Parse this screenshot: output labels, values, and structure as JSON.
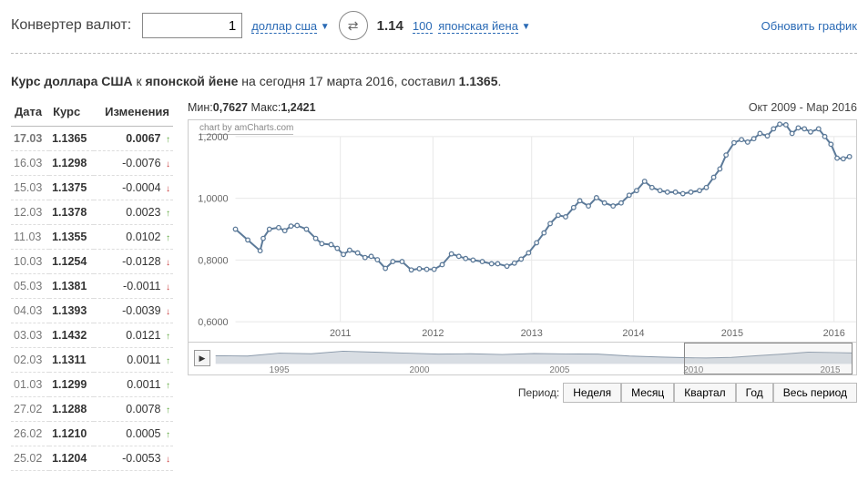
{
  "converter": {
    "title": "Конвертер валют:",
    "amount": "1",
    "from_label": "доллар сша",
    "result": "1.14",
    "to_prefix": "100",
    "to_label": "японская йена",
    "refresh": "Обновить график"
  },
  "headline": {
    "bold1": "Курс доллара США",
    "mid": " к ",
    "bold2": "японской йене",
    "rest": " на сегодня 17 марта 2016, составил ",
    "val": "1.1365",
    "dot": "."
  },
  "rates": {
    "headers": [
      "Дата",
      "Курс",
      "Изменения"
    ],
    "rows": [
      {
        "date": "17.03",
        "rate": "1.1365",
        "chg": "0.0067",
        "dir": "up"
      },
      {
        "date": "16.03",
        "rate": "1.1298",
        "chg": "-0.0076",
        "dir": "down"
      },
      {
        "date": "15.03",
        "rate": "1.1375",
        "chg": "-0.0004",
        "dir": "down"
      },
      {
        "date": "12.03",
        "rate": "1.1378",
        "chg": "0.0023",
        "dir": "up"
      },
      {
        "date": "11.03",
        "rate": "1.1355",
        "chg": "0.0102",
        "dir": "up"
      },
      {
        "date": "10.03",
        "rate": "1.1254",
        "chg": "-0.0128",
        "dir": "down"
      },
      {
        "date": "05.03",
        "rate": "1.1381",
        "chg": "-0.0011",
        "dir": "down"
      },
      {
        "date": "04.03",
        "rate": "1.1393",
        "chg": "-0.0039",
        "dir": "down"
      },
      {
        "date": "03.03",
        "rate": "1.1432",
        "chg": "0.0121",
        "dir": "up"
      },
      {
        "date": "02.03",
        "rate": "1.1311",
        "chg": "0.0011",
        "dir": "up"
      },
      {
        "date": "01.03",
        "rate": "1.1299",
        "chg": "0.0011",
        "dir": "up"
      },
      {
        "date": "27.02",
        "rate": "1.1288",
        "chg": "0.0078",
        "dir": "up"
      },
      {
        "date": "26.02",
        "rate": "1.1210",
        "chg": "0.0005",
        "dir": "up"
      },
      {
        "date": "25.02",
        "rate": "1.1204",
        "chg": "-0.0053",
        "dir": "down"
      }
    ]
  },
  "chart": {
    "min_label": "Мин:",
    "min_val": "0,7627",
    "max_label": "Макс:",
    "max_val": "1,2421",
    "range_label": "Окт 2009 - Мар 2016",
    "attribution": "chart by amCharts.com",
    "ylim": [
      0.6,
      1.2
    ],
    "yticks": [
      0.6,
      0.8,
      1.0,
      1.2
    ],
    "ytick_labels": [
      "0,6000",
      "0,8000",
      "1,0000",
      "1,2000"
    ],
    "xtick_positions": [
      0.17,
      0.32,
      0.48,
      0.645,
      0.805,
      0.97
    ],
    "xtick_labels": [
      "2011",
      "2012",
      "2013",
      "2014",
      "2015",
      "2016"
    ],
    "line_color": "#5c7a99",
    "grid_color": "#e8e8e8",
    "series": [
      {
        "x": 0.0,
        "y": 0.9
      },
      {
        "x": 0.02,
        "y": 0.865
      },
      {
        "x": 0.04,
        "y": 0.83
      },
      {
        "x": 0.045,
        "y": 0.87
      },
      {
        "x": 0.055,
        "y": 0.9
      },
      {
        "x": 0.07,
        "y": 0.905
      },
      {
        "x": 0.08,
        "y": 0.895
      },
      {
        "x": 0.09,
        "y": 0.91
      },
      {
        "x": 0.1,
        "y": 0.912
      },
      {
        "x": 0.115,
        "y": 0.9
      },
      {
        "x": 0.13,
        "y": 0.87
      },
      {
        "x": 0.14,
        "y": 0.853
      },
      {
        "x": 0.155,
        "y": 0.85
      },
      {
        "x": 0.165,
        "y": 0.838
      },
      {
        "x": 0.175,
        "y": 0.818
      },
      {
        "x": 0.185,
        "y": 0.832
      },
      {
        "x": 0.198,
        "y": 0.823
      },
      {
        "x": 0.21,
        "y": 0.808
      },
      {
        "x": 0.22,
        "y": 0.812
      },
      {
        "x": 0.23,
        "y": 0.801
      },
      {
        "x": 0.243,
        "y": 0.773
      },
      {
        "x": 0.255,
        "y": 0.795
      },
      {
        "x": 0.27,
        "y": 0.795
      },
      {
        "x": 0.285,
        "y": 0.768
      },
      {
        "x": 0.298,
        "y": 0.772
      },
      {
        "x": 0.31,
        "y": 0.77
      },
      {
        "x": 0.322,
        "y": 0.77
      },
      {
        "x": 0.335,
        "y": 0.785
      },
      {
        "x": 0.35,
        "y": 0.82
      },
      {
        "x": 0.362,
        "y": 0.812
      },
      {
        "x": 0.373,
        "y": 0.805
      },
      {
        "x": 0.385,
        "y": 0.8
      },
      {
        "x": 0.4,
        "y": 0.795
      },
      {
        "x": 0.415,
        "y": 0.788
      },
      {
        "x": 0.425,
        "y": 0.788
      },
      {
        "x": 0.44,
        "y": 0.78
      },
      {
        "x": 0.452,
        "y": 0.79
      },
      {
        "x": 0.463,
        "y": 0.803
      },
      {
        "x": 0.475,
        "y": 0.823
      },
      {
        "x": 0.488,
        "y": 0.856
      },
      {
        "x": 0.5,
        "y": 0.888
      },
      {
        "x": 0.51,
        "y": 0.918
      },
      {
        "x": 0.523,
        "y": 0.945
      },
      {
        "x": 0.535,
        "y": 0.94
      },
      {
        "x": 0.548,
        "y": 0.97
      },
      {
        "x": 0.558,
        "y": 0.992
      },
      {
        "x": 0.572,
        "y": 0.975
      },
      {
        "x": 0.585,
        "y": 1.002
      },
      {
        "x": 0.598,
        "y": 0.985
      },
      {
        "x": 0.612,
        "y": 0.975
      },
      {
        "x": 0.625,
        "y": 0.985
      },
      {
        "x": 0.638,
        "y": 1.01
      },
      {
        "x": 0.65,
        "y": 1.025
      },
      {
        "x": 0.663,
        "y": 1.055
      },
      {
        "x": 0.675,
        "y": 1.035
      },
      {
        "x": 0.688,
        "y": 1.025
      },
      {
        "x": 0.7,
        "y": 1.02
      },
      {
        "x": 0.713,
        "y": 1.02
      },
      {
        "x": 0.725,
        "y": 1.015
      },
      {
        "x": 0.738,
        "y": 1.02
      },
      {
        "x": 0.752,
        "y": 1.025
      },
      {
        "x": 0.763,
        "y": 1.035
      },
      {
        "x": 0.775,
        "y": 1.068
      },
      {
        "x": 0.785,
        "y": 1.095
      },
      {
        "x": 0.795,
        "y": 1.14
      },
      {
        "x": 0.808,
        "y": 1.18
      },
      {
        "x": 0.82,
        "y": 1.19
      },
      {
        "x": 0.83,
        "y": 1.182
      },
      {
        "x": 0.84,
        "y": 1.193
      },
      {
        "x": 0.85,
        "y": 1.21
      },
      {
        "x": 0.862,
        "y": 1.202
      },
      {
        "x": 0.872,
        "y": 1.225
      },
      {
        "x": 0.882,
        "y": 1.24
      },
      {
        "x": 0.892,
        "y": 1.238
      },
      {
        "x": 0.902,
        "y": 1.21
      },
      {
        "x": 0.912,
        "y": 1.228
      },
      {
        "x": 0.922,
        "y": 1.225
      },
      {
        "x": 0.932,
        "y": 1.215
      },
      {
        "x": 0.945,
        "y": 1.225
      },
      {
        "x": 0.955,
        "y": 1.2
      },
      {
        "x": 0.965,
        "y": 1.175
      },
      {
        "x": 0.975,
        "y": 1.13
      },
      {
        "x": 0.985,
        "y": 1.128
      },
      {
        "x": 0.995,
        "y": 1.135
      }
    ]
  },
  "scrubber": {
    "labels": [
      "1995",
      "2000",
      "2005",
      "2010",
      "2015"
    ],
    "positions": [
      0.1,
      0.32,
      0.54,
      0.75,
      0.965
    ],
    "sel_start": 0.735,
    "sel_end": 1.0,
    "series": [
      {
        "x": 0.0,
        "y": 0.42
      },
      {
        "x": 0.05,
        "y": 0.4
      },
      {
        "x": 0.1,
        "y": 0.55
      },
      {
        "x": 0.15,
        "y": 0.52
      },
      {
        "x": 0.2,
        "y": 0.65
      },
      {
        "x": 0.25,
        "y": 0.6
      },
      {
        "x": 0.3,
        "y": 0.55
      },
      {
        "x": 0.35,
        "y": 0.5
      },
      {
        "x": 0.4,
        "y": 0.52
      },
      {
        "x": 0.45,
        "y": 0.48
      },
      {
        "x": 0.5,
        "y": 0.53
      },
      {
        "x": 0.55,
        "y": 0.51
      },
      {
        "x": 0.6,
        "y": 0.5
      },
      {
        "x": 0.65,
        "y": 0.4
      },
      {
        "x": 0.7,
        "y": 0.35
      },
      {
        "x": 0.735,
        "y": 0.32
      },
      {
        "x": 0.77,
        "y": 0.3
      },
      {
        "x": 0.81,
        "y": 0.33
      },
      {
        "x": 0.85,
        "y": 0.42
      },
      {
        "x": 0.89,
        "y": 0.5
      },
      {
        "x": 0.93,
        "y": 0.6
      },
      {
        "x": 0.97,
        "y": 0.58
      },
      {
        "x": 1.0,
        "y": 0.56
      }
    ]
  },
  "period": {
    "title": "Период:",
    "buttons": [
      "Неделя",
      "Месяц",
      "Квартал",
      "Год",
      "Весь период"
    ]
  }
}
